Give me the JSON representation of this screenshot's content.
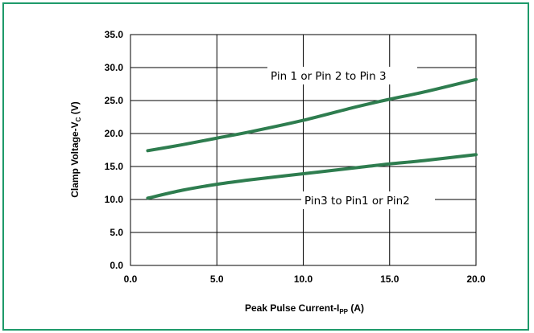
{
  "colors": {
    "frame": "#1e9a6a",
    "series": "#2e7d4f",
    "grid": "#000000"
  },
  "chart_data": {
    "type": "line",
    "title": "",
    "xlabel_main": "Peak Pulse Current-I",
    "xlabel_sub": "PP",
    "xlabel_unit": " (A)",
    "ylabel_main": "Clamp Voltage-V",
    "ylabel_sub": "C",
    "ylabel_unit": " (V)",
    "xlim": [
      0,
      20
    ],
    "ylim": [
      0,
      35
    ],
    "grid": true,
    "xticks": [
      "0.0",
      "5.0",
      "10.0",
      "15.0",
      "20.0"
    ],
    "yticks": [
      "0.0",
      "5.0",
      "10.0",
      "15.0",
      "20.0",
      "25.0",
      "30.0",
      "35.0"
    ],
    "series": [
      {
        "name": "Pin 1 or Pin 2 to Pin 3",
        "x": [
          1,
          3,
          5,
          7,
          10,
          13,
          15,
          17,
          20
        ],
        "y": [
          17.4,
          18.3,
          19.3,
          20.3,
          22.0,
          24.0,
          25.2,
          26.3,
          28.2
        ]
      },
      {
        "name": "Pin3 to Pin1 or Pin2",
        "x": [
          1,
          3,
          5,
          7,
          10,
          13,
          15,
          17,
          20
        ],
        "y": [
          10.2,
          11.4,
          12.3,
          13.0,
          13.9,
          14.8,
          15.4,
          15.9,
          16.8
        ]
      }
    ],
    "annotations": [
      "Pin 1 or Pin 2 to Pin 3",
      "Pin3 to Pin1 or Pin2"
    ]
  }
}
